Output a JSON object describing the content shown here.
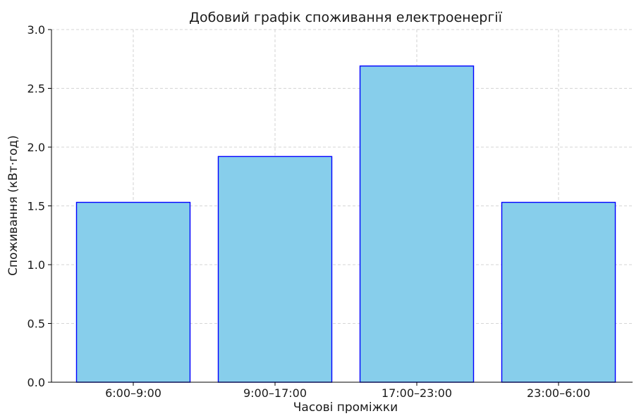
{
  "chart_data": {
    "type": "bar",
    "title": "Добовий графік споживання електроенергії",
    "xlabel": "Часові проміжки",
    "ylabel": "Споживання (кВт·год)",
    "categories": [
      "6:00–9:00",
      "9:00–17:00",
      "17:00–23:00",
      "23:00–6:00"
    ],
    "values": [
      1.53,
      1.92,
      2.69,
      1.53
    ],
    "ylim": [
      0,
      3.0
    ],
    "yticks": [
      "0.0",
      "0.5",
      "1.0",
      "1.5",
      "2.0",
      "2.5",
      "3.0"
    ],
    "grid": true,
    "colors": {
      "bar_fill": "#87ceeb",
      "bar_edge": "#0000ff"
    }
  }
}
